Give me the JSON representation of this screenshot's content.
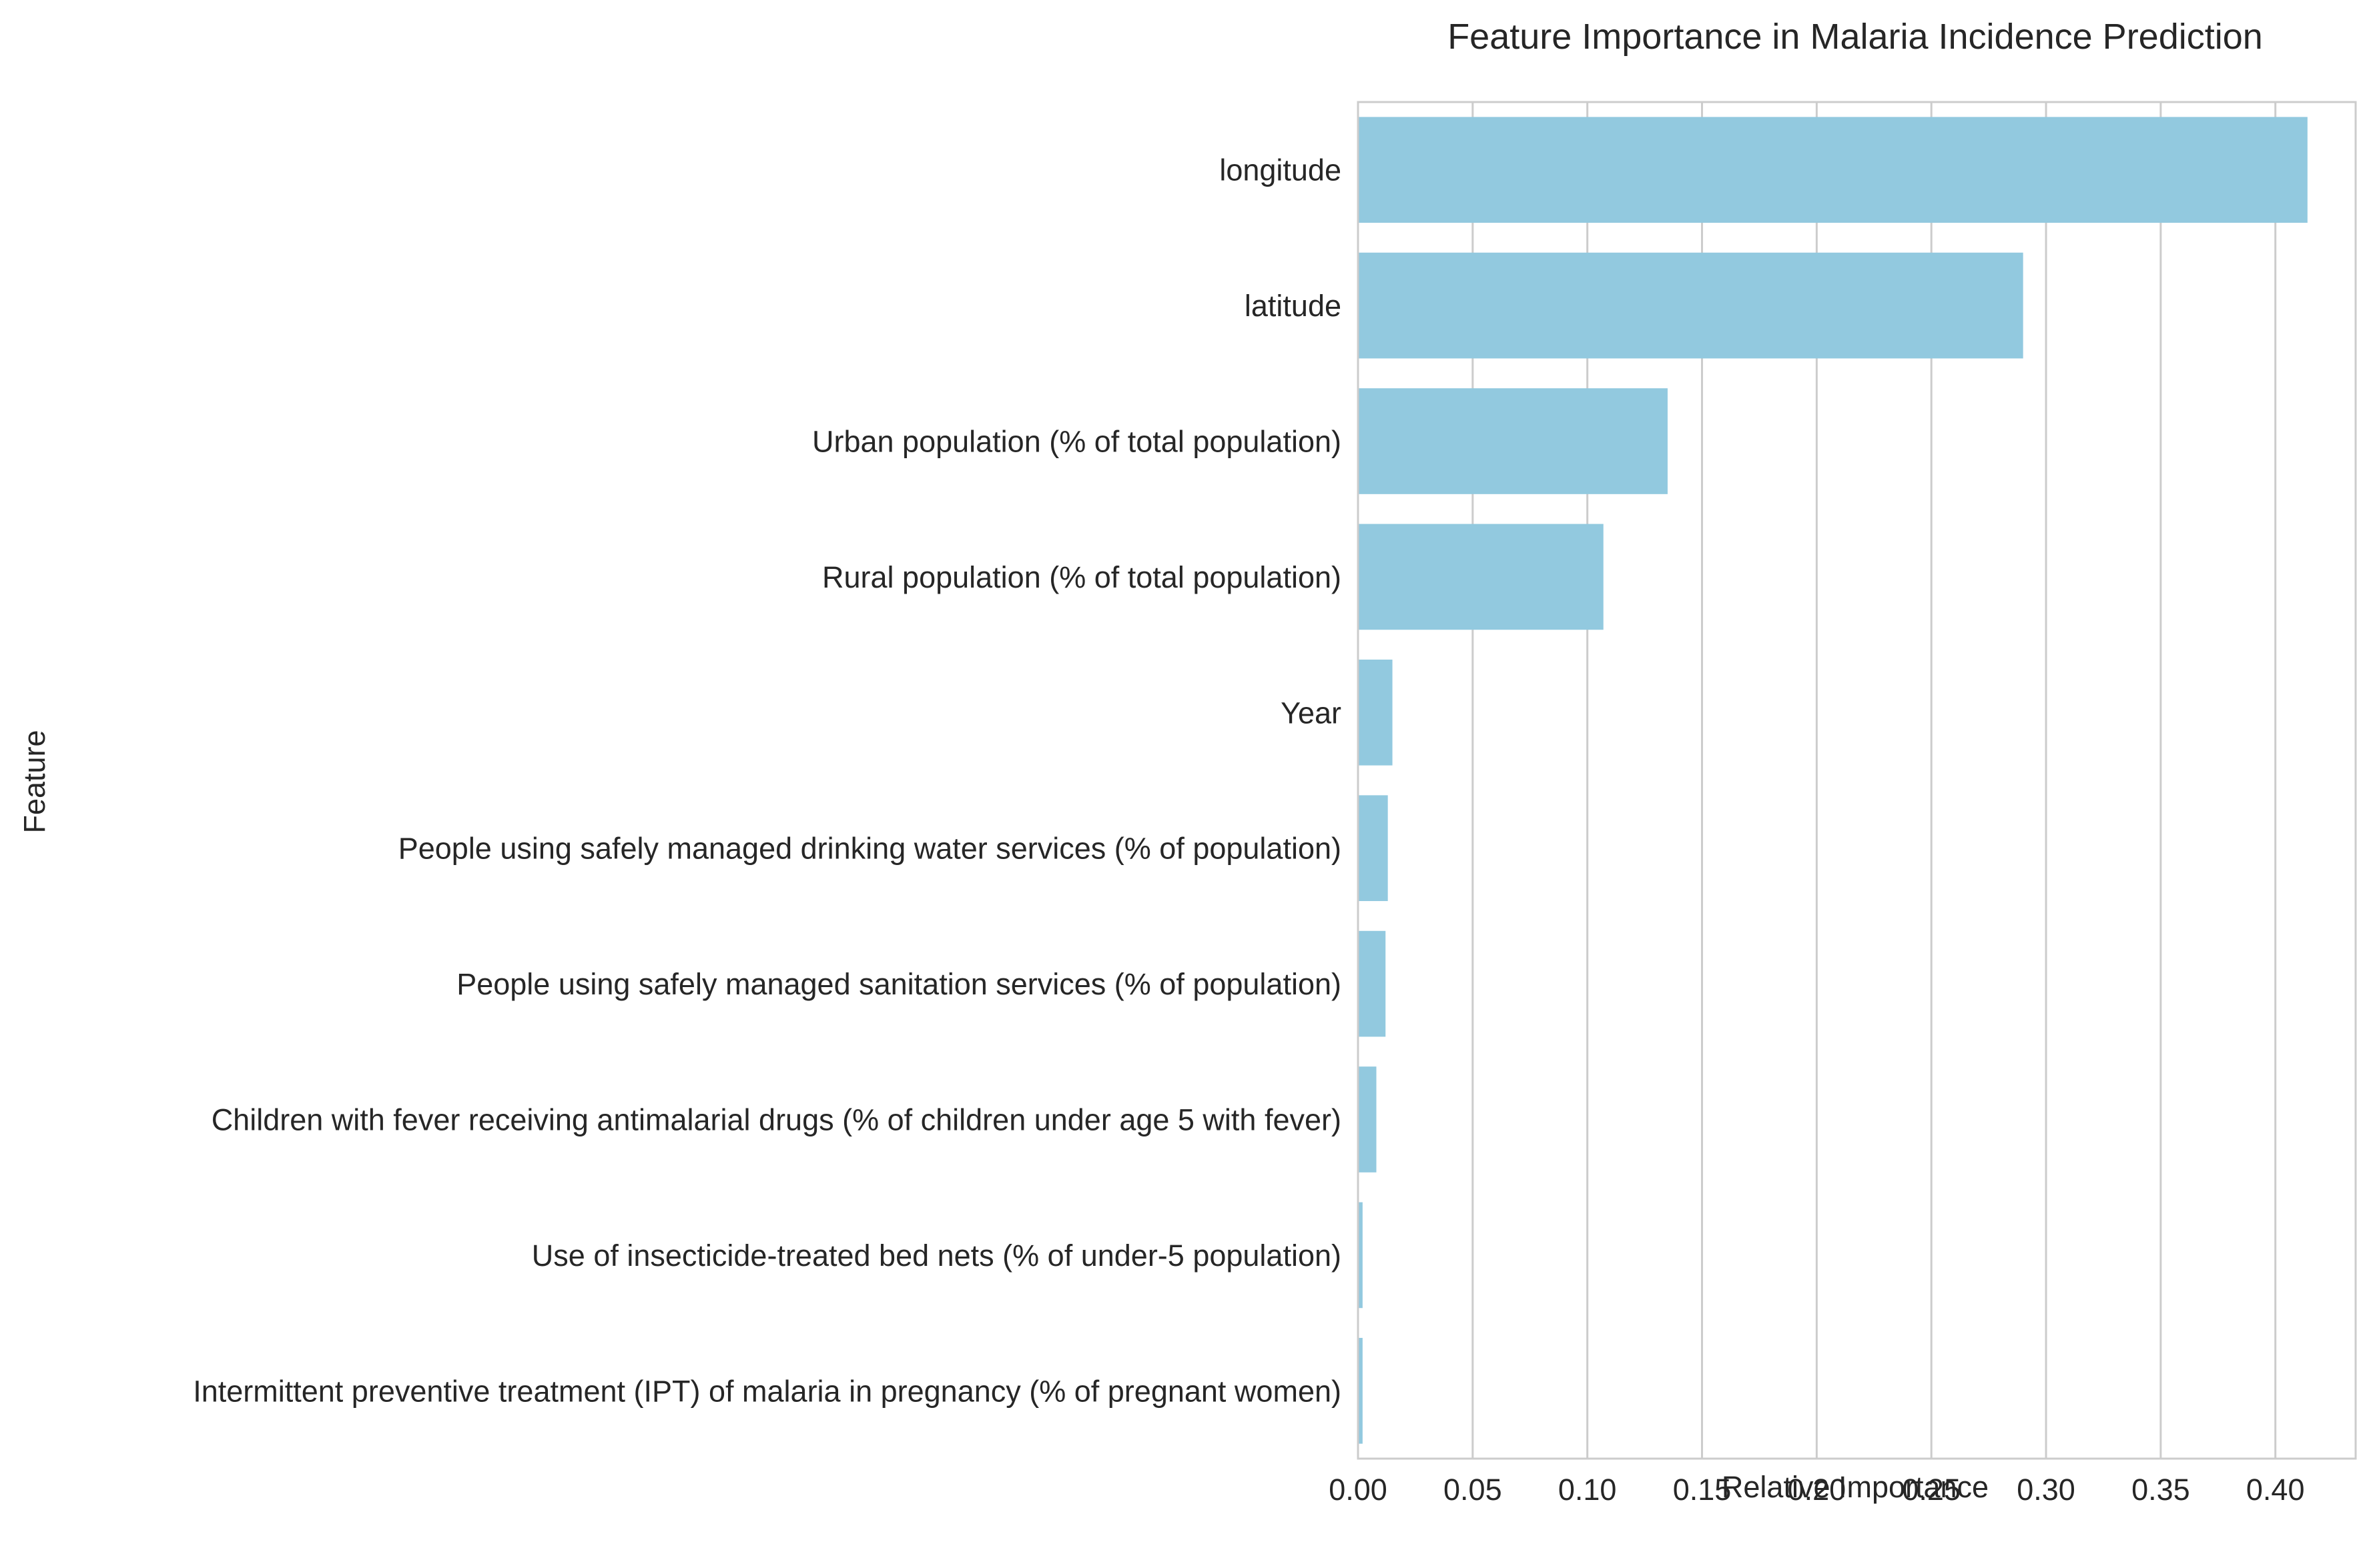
{
  "chart_data": {
    "type": "bar",
    "orientation": "horizontal",
    "title": "Feature Importance in Malaria Incidence Prediction",
    "xlabel": "Relative Importance",
    "ylabel": "Feature",
    "categories": [
      "longitude",
      "latitude",
      "Urban population (% of total population)",
      "Rural population (% of total population)",
      "Year",
      "People using safely managed drinking water services (% of population)",
      "People using safely managed sanitation services (% of population)",
      "Children with fever receiving antimalarial drugs (% of children under age 5 with fever)",
      "Use of insecticide-treated bed nets (% of under-5 population)",
      "Intermittent preventive treatment (IPT) of malaria in pregnancy (% of pregnant women)"
    ],
    "values": [
      0.414,
      0.29,
      0.135,
      0.107,
      0.015,
      0.013,
      0.012,
      0.008,
      0.002,
      0.002
    ],
    "xlim": [
      0,
      0.435
    ],
    "xticks": [
      "0.00",
      "0.05",
      "0.10",
      "0.15",
      "0.20",
      "0.25",
      "0.30",
      "0.35",
      "0.40"
    ],
    "grid": "vertical",
    "bar_color": "#92c9df",
    "grid_color": "#cccccc"
  }
}
